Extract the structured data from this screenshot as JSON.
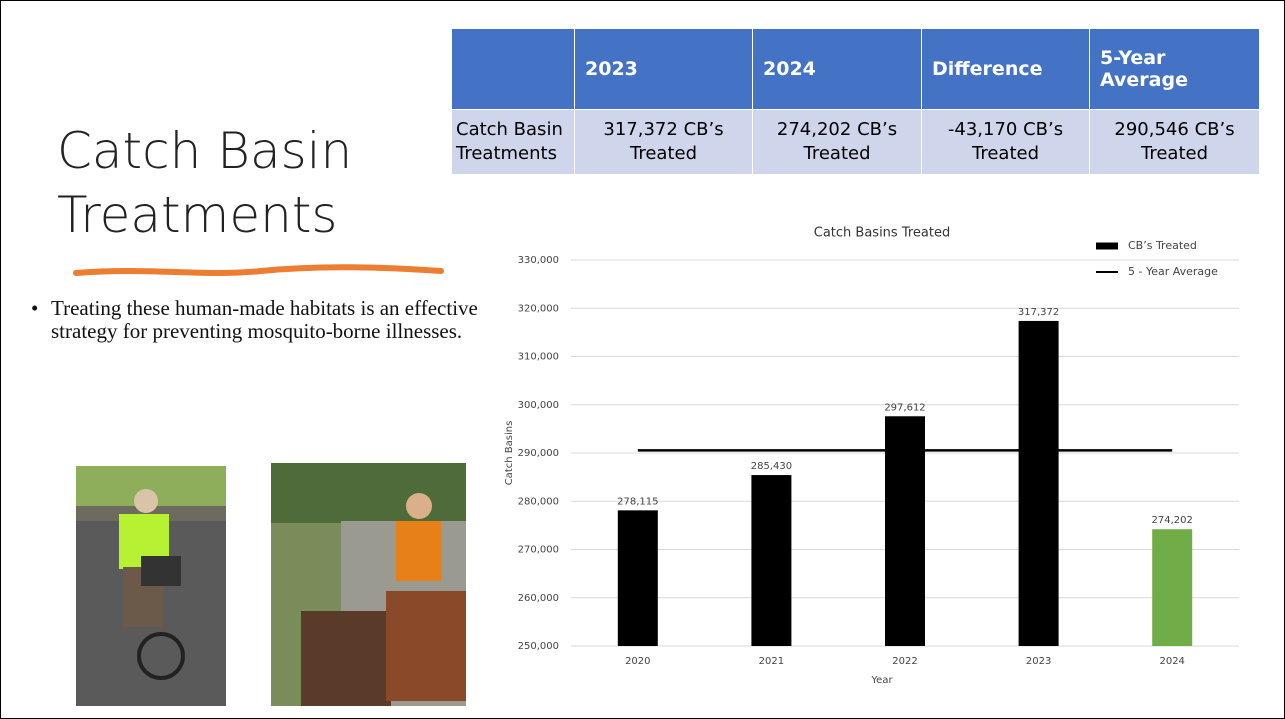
{
  "slide": {
    "title": "Catch Basin Treatments",
    "bullets": [
      "Treating these human-made habitats is an effective strategy for preventing mosquito-borne illnesses."
    ]
  },
  "table": {
    "header": [
      "2023",
      "2024",
      "Difference",
      "5-Year Average"
    ],
    "rows": [
      [
        "Catch Basin Treatments",
        "317,372 CB’s Treated",
        "274,202 CB’s Treated",
        "-43,170 CB’s Treated",
        "290,546 CB’s Treated"
      ]
    ]
  },
  "chart_data": {
    "type": "bar",
    "title": "Catch Basins Treated",
    "x_label": "Year",
    "y_label": "Catch Basins",
    "categories": [
      "2020",
      "2021",
      "2022",
      "2023",
      "2024"
    ],
    "series": [
      {
        "name": "CB’s Treated",
        "type": "bar",
        "colors": [
          "#000000",
          "#000000",
          "#000000",
          "#000000",
          "#70ad47"
        ],
        "values": [
          278115,
          285430,
          297612,
          317372,
          274202
        ],
        "value_labels": [
          "278,115",
          "285,430",
          "297,612",
          "317,372",
          "274,202"
        ]
      },
      {
        "name": "5 - Year Average",
        "type": "line",
        "color": "#000000",
        "values": [
          290546,
          290546,
          290546,
          290546,
          290546
        ]
      }
    ],
    "ylim": [
      250000,
      330000
    ],
    "yticks": [
      {
        "value": 250000,
        "label": "250,000"
      },
      {
        "value": 260000,
        "label": "260,000"
      },
      {
        "value": 270000,
        "label": "270,000"
      },
      {
        "value": 280000,
        "label": "280,000"
      },
      {
        "value": 290000,
        "label": "290,000"
      },
      {
        "value": 300000,
        "label": "300,000"
      },
      {
        "value": 310000,
        "label": "310,000"
      },
      {
        "value": 320000,
        "label": "320,000"
      },
      {
        "value": 330000,
        "label": "330,000"
      }
    ],
    "grid": true,
    "legend": "top-right"
  }
}
